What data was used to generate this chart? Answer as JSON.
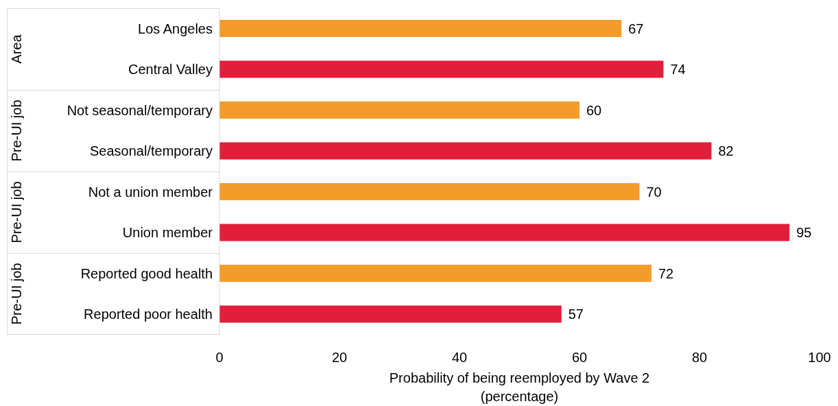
{
  "chart_data": {
    "type": "bar",
    "orientation": "horizontal",
    "categories": [
      "Los Angeles",
      "Central Valley",
      "Not seasonal/temporary",
      "Seasonal/temporary",
      "Not a union member",
      "Union member",
      "Reported good health",
      "Reported poor health"
    ],
    "values": [
      67,
      74,
      60,
      82,
      70,
      95,
      72,
      57
    ],
    "colors": [
      "#f39c2a",
      "#e31e3a",
      "#f39c2a",
      "#e31e3a",
      "#f39c2a",
      "#e31e3a",
      "#f39c2a",
      "#e31e3a"
    ],
    "xlim": [
      0,
      100
    ],
    "xticks": [
      0,
      20,
      40,
      60,
      80,
      100
    ],
    "grid": false,
    "legend": false,
    "data_labels": true,
    "xlabel": "Probability of being reemployed by Wave 2\n(percentage)",
    "annotations": [
      "Area",
      "Pre-UI job",
      "Pre-UI job",
      "Pre-UI job"
    ]
  }
}
